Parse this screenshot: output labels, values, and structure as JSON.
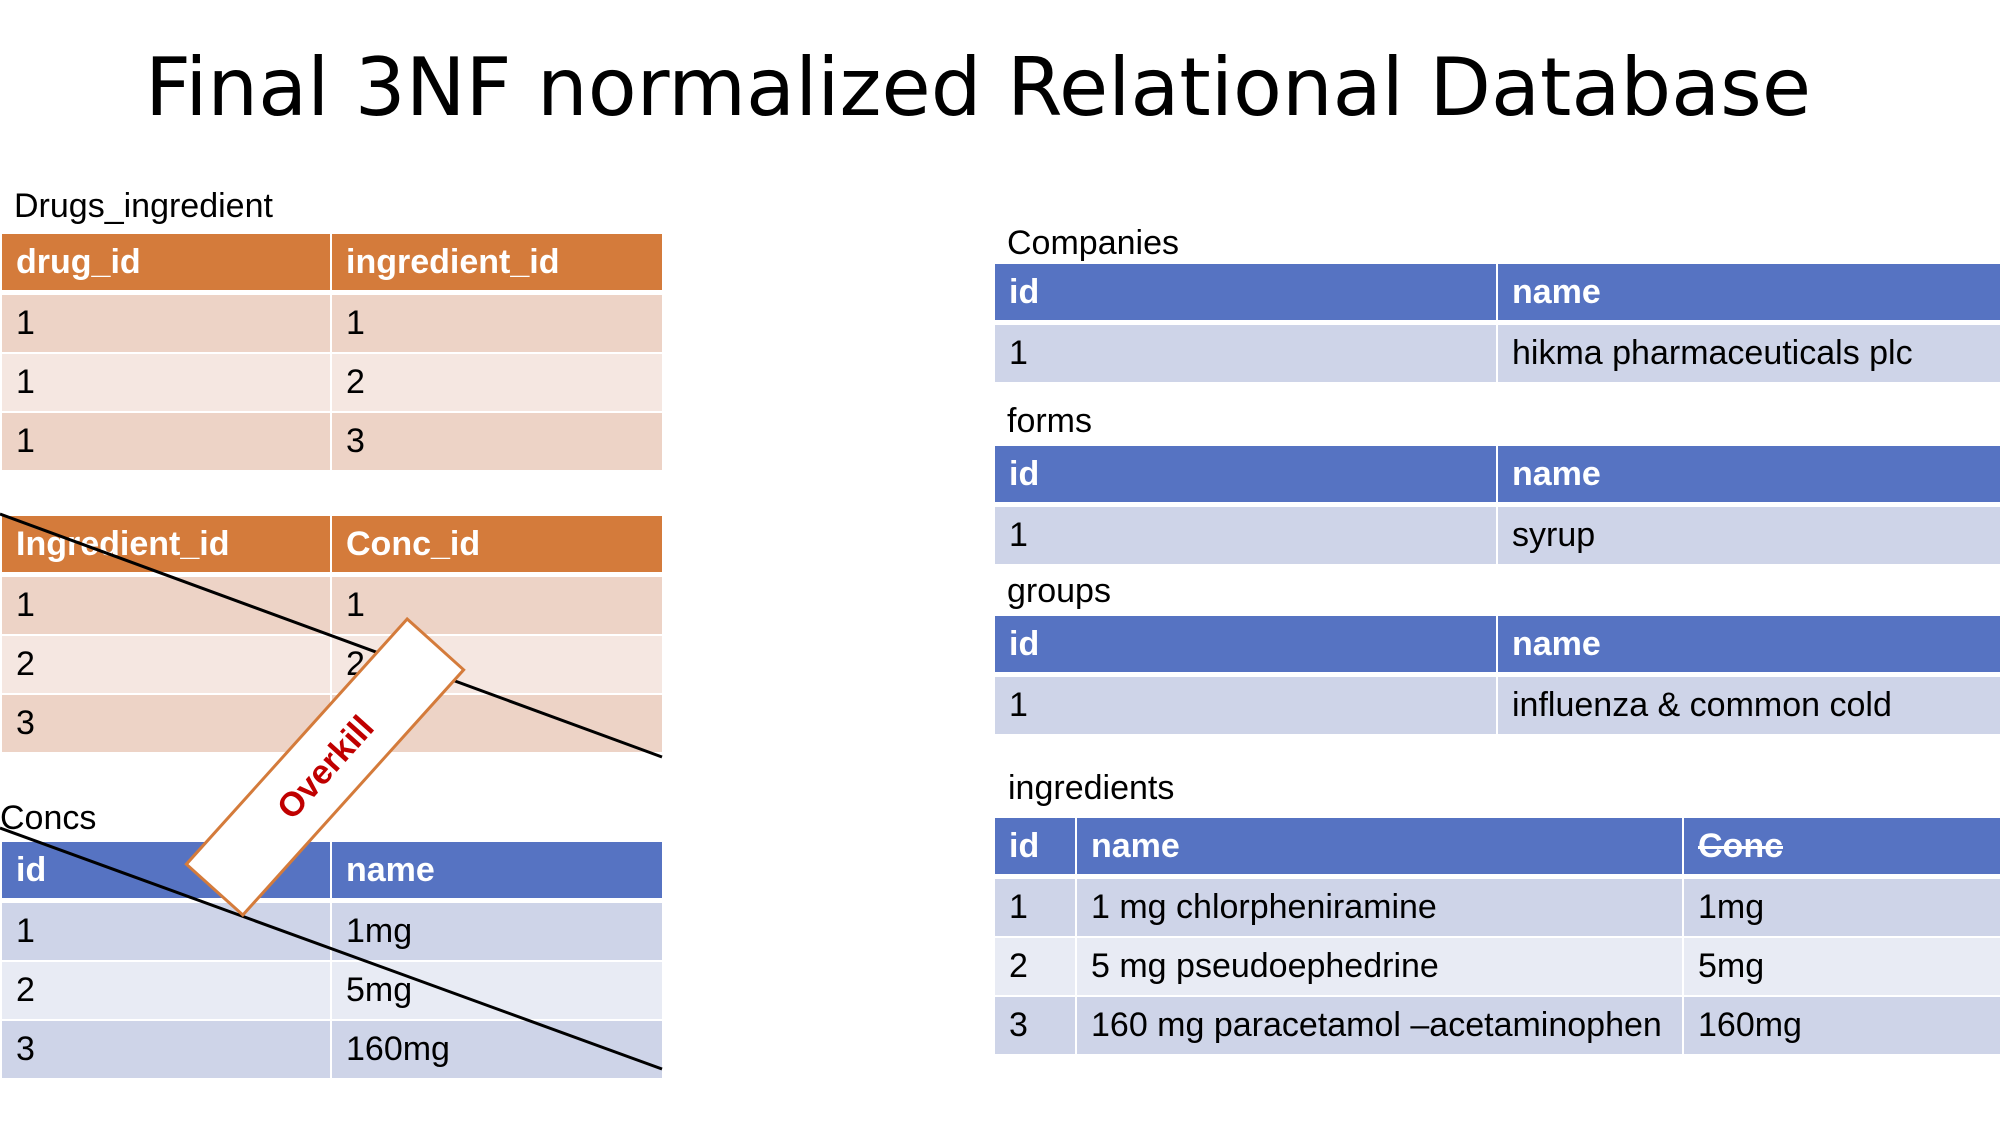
{
  "title": "Final 3NF normalized Relational Database",
  "drugs_ingredient": {
    "caption": "Drugs_ingredient",
    "headers": [
      "drug_id",
      "ingredient_id"
    ],
    "rows": [
      [
        "1",
        "1"
      ],
      [
        "1",
        "2"
      ],
      [
        "1",
        "3"
      ]
    ]
  },
  "ingredient_conc": {
    "headers": [
      "Ingredient_id",
      "Conc_id"
    ],
    "rows": [
      [
        "1",
        "1"
      ],
      [
        "2",
        "2"
      ],
      [
        "3",
        ""
      ]
    ]
  },
  "concs": {
    "caption": "Concs",
    "headers": [
      "id",
      "name"
    ],
    "rows": [
      [
        "1",
        "1mg"
      ],
      [
        "2",
        "5mg"
      ],
      [
        "3",
        "160mg"
      ]
    ]
  },
  "overkill_stamp": "Overkill",
  "companies": {
    "caption": "Companies",
    "headers": [
      "id",
      "name"
    ],
    "rows": [
      [
        "1",
        "hikma pharmaceuticals plc"
      ]
    ]
  },
  "forms": {
    "caption": "forms",
    "headers": [
      "id",
      "name"
    ],
    "rows": [
      [
        "1",
        "syrup"
      ]
    ]
  },
  "groups": {
    "caption": "groups",
    "headers": [
      "id",
      "name"
    ],
    "rows": [
      [
        "1",
        "influenza & common cold"
      ]
    ]
  },
  "ingredients": {
    "caption": "ingredients",
    "headers": [
      "id",
      "name",
      "Conc"
    ],
    "rows": [
      [
        "1",
        "1 mg chlorpheniramine",
        "1mg"
      ],
      [
        "2",
        "5 mg pseudoephedrine",
        "5mg"
      ],
      [
        "3",
        "160 mg paracetamol –acetaminophen",
        "160mg"
      ]
    ]
  },
  "colors": {
    "orange_header": "#D47B3B",
    "orange_row": "#EDD3C6",
    "blue_header": "#5673C2",
    "blue_row": "#CED4E8",
    "stamp_text": "#C00000"
  }
}
